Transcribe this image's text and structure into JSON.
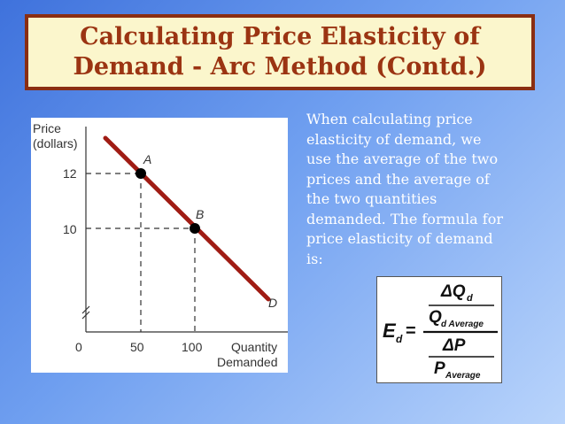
{
  "title": {
    "line1": "Calculating Price Elasticity of",
    "line2": "Demand - Arc Method (Contd.)"
  },
  "diagram": {
    "y_label_line1": "Price",
    "y_label_line2": "(dollars)",
    "x_label_line1": "Quantity",
    "x_label_line2": "Demanded",
    "y_ticks": [
      "12",
      "10"
    ],
    "x_ticks": [
      "0",
      "50",
      "100"
    ],
    "points": [
      {
        "label": "A",
        "quantity": 50,
        "price": 12
      },
      {
        "label": "B",
        "quantity": 100,
        "price": 10
      }
    ],
    "curve_label": "D",
    "colors": {
      "curve": "#a01c14",
      "point": "#000000",
      "axis": "#333333"
    }
  },
  "description": {
    "lines": [
      "When calculating price",
      "elasticity of demand, we",
      "use the average of the two",
      "prices and the average of",
      "the two quantities",
      "demanded. The formula for",
      "price elasticity of demand",
      "is:"
    ]
  },
  "formula": {
    "lhs": "E",
    "lhs_sub": "d",
    "equals": "=",
    "num_top": "ΔQ",
    "num_top_sub": "d",
    "num_bottom": "Q",
    "num_bottom_sub": "d Average",
    "den_top": "ΔP",
    "den_bottom": "P",
    "den_bottom_sub": "Average"
  }
}
